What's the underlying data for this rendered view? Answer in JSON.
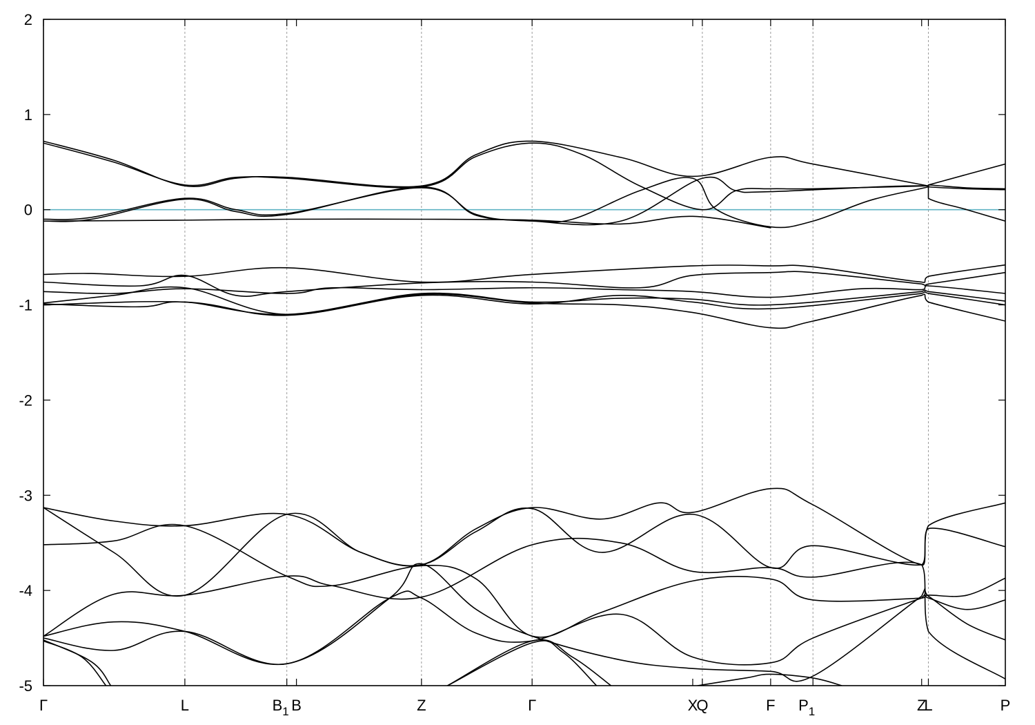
{
  "chart_data": {
    "type": "line",
    "title": "",
    "xlabel": "",
    "ylabel": "",
    "ylim": [
      -5,
      2
    ],
    "xlim": [
      0,
      1
    ],
    "yticks": [
      -5,
      -4,
      -3,
      -2,
      -1,
      0,
      1,
      2
    ],
    "grid": "vertical dashed lines at high-symmetry points",
    "reference_line": {
      "y": 0,
      "color": "#5fb3c4"
    },
    "kpoints": [
      {
        "label": "Γ",
        "sub": "",
        "x": 0.0,
        "line": false
      },
      {
        "label": "L",
        "sub": "",
        "x": 0.147,
        "line": true
      },
      {
        "label": "B",
        "sub": "1",
        "x": 0.253,
        "line": true
      },
      {
        "label": "B",
        "sub": "",
        "x": 0.263,
        "line": false
      },
      {
        "label": "Z",
        "sub": "",
        "x": 0.393,
        "line": true
      },
      {
        "label": "Γ",
        "sub": "",
        "x": 0.508,
        "line": true
      },
      {
        "label": "X",
        "sub": "",
        "x": 0.675,
        "line": false
      },
      {
        "label": "Q",
        "sub": "",
        "x": 0.685,
        "line": true
      },
      {
        "label": "F",
        "sub": "",
        "x": 0.756,
        "line": true
      },
      {
        "label": "P",
        "sub": "1",
        "x": 0.8,
        "line": true
      },
      {
        "label": "Z",
        "sub": "",
        "x": 0.913,
        "line": false
      },
      {
        "label": "L",
        "sub": "",
        "x": 0.92,
        "line": true
      },
      {
        "label": "P",
        "sub": "",
        "x": 1.0,
        "line": false
      }
    ],
    "series": [
      {
        "points": [
          [
            0,
            0.72
          ],
          [
            0.073,
            0.52
          ],
          [
            0.147,
            0.25
          ],
          [
            0.2,
            0.33
          ],
          [
            0.253,
            0.34
          ],
          [
            0.393,
            0.25
          ],
          [
            0.45,
            0.58
          ],
          [
            0.508,
            0.72
          ],
          [
            0.6,
            0.55
          ],
          [
            0.675,
            0.35
          ],
          [
            0.756,
            0.55
          ],
          [
            0.8,
            0.48
          ],
          [
            0.92,
            0.25
          ],
          [
            0.92,
            0.26
          ],
          [
            1.0,
            0.48
          ]
        ]
      },
      {
        "points": [
          [
            0,
            0.7
          ],
          [
            0.073,
            0.5
          ],
          [
            0.147,
            0.26
          ],
          [
            0.2,
            0.34
          ],
          [
            0.253,
            0.33
          ],
          [
            0.393,
            0.24
          ],
          [
            0.45,
            0.56
          ],
          [
            0.508,
            0.7
          ],
          [
            0.56,
            0.58
          ],
          [
            0.62,
            0.25
          ],
          [
            0.685,
            0.0
          ],
          [
            0.72,
            0.2
          ],
          [
            0.756,
            0.22
          ],
          [
            0.8,
            0.22
          ],
          [
            0.92,
            0.25
          ],
          [
            0.92,
            0.24
          ],
          [
            0.96,
            0.22
          ],
          [
            1.0,
            0.21
          ]
        ]
      },
      {
        "points": [
          [
            0,
            -0.1
          ],
          [
            0.05,
            -0.08
          ],
          [
            0.147,
            0.12
          ],
          [
            0.2,
            0.0
          ],
          [
            0.253,
            -0.04
          ],
          [
            0.393,
            0.23
          ],
          [
            0.45,
            -0.05
          ],
          [
            0.508,
            -0.12
          ],
          [
            0.6,
            -0.12
          ],
          [
            0.685,
            0.33
          ],
          [
            0.72,
            0.2
          ],
          [
            0.756,
            0.19
          ],
          [
            0.92,
            0.25
          ],
          [
            0.92,
            0.12
          ],
          [
            0.96,
            0.0
          ],
          [
            1.0,
            -0.12
          ]
        ]
      },
      {
        "points": [
          [
            0,
            -0.12
          ],
          [
            0.05,
            -0.1
          ],
          [
            0.147,
            0.11
          ],
          [
            0.2,
            -0.02
          ],
          [
            0.253,
            -0.05
          ],
          [
            0.393,
            0.24
          ],
          [
            0.45,
            -0.06
          ],
          [
            0.508,
            -0.11
          ],
          [
            0.55,
            -0.1
          ],
          [
            0.62,
            0.2
          ],
          [
            0.675,
            0.33
          ],
          [
            0.7,
            0.0
          ],
          [
            0.756,
            -0.18
          ],
          [
            0.8,
            -0.12
          ],
          [
            0.86,
            0.1
          ],
          [
            0.92,
            0.24
          ],
          [
            0.92,
            0.26
          ],
          [
            0.96,
            0.23
          ],
          [
            1.0,
            0.22
          ]
        ]
      },
      {
        "points": [
          [
            0,
            -0.12
          ],
          [
            0.147,
            -0.11
          ],
          [
            0.253,
            -0.1
          ],
          [
            0.393,
            -0.1
          ],
          [
            0.508,
            -0.11
          ],
          [
            0.6,
            -0.15
          ],
          [
            0.675,
            -0.07
          ],
          [
            0.756,
            -0.19
          ]
        ]
      },
      {
        "points": [
          [
            0,
            -0.68
          ],
          [
            0.05,
            -0.67
          ],
          [
            0.147,
            -0.7
          ],
          [
            0.253,
            -0.61
          ],
          [
            0.393,
            -0.76
          ],
          [
            0.508,
            -0.68
          ],
          [
            0.675,
            -0.59
          ],
          [
            0.756,
            -0.59
          ],
          [
            0.8,
            -0.6
          ],
          [
            0.913,
            -0.76
          ],
          [
            0.92,
            -0.7
          ],
          [
            1.0,
            -0.58
          ]
        ]
      },
      {
        "points": [
          [
            0,
            -0.76
          ],
          [
            0.1,
            -0.8
          ],
          [
            0.147,
            -0.69
          ],
          [
            0.2,
            -0.9
          ],
          [
            0.253,
            -0.86
          ],
          [
            0.393,
            -0.77
          ],
          [
            0.508,
            -0.76
          ],
          [
            0.62,
            -0.82
          ],
          [
            0.675,
            -0.69
          ],
          [
            0.756,
            -0.66
          ],
          [
            0.8,
            -0.66
          ],
          [
            0.913,
            -0.78
          ],
          [
            0.92,
            -0.78
          ],
          [
            1.0,
            -0.66
          ]
        ]
      },
      {
        "points": [
          [
            0,
            -0.86
          ],
          [
            0.073,
            -0.88
          ],
          [
            0.147,
            -0.83
          ],
          [
            0.253,
            -0.88
          ],
          [
            0.3,
            -0.82
          ],
          [
            0.393,
            -0.84
          ],
          [
            0.508,
            -0.82
          ],
          [
            0.6,
            -0.84
          ],
          [
            0.675,
            -0.86
          ],
          [
            0.756,
            -0.92
          ],
          [
            0.85,
            -0.83
          ],
          [
            0.913,
            -0.84
          ],
          [
            0.92,
            -0.8
          ],
          [
            1.0,
            -0.88
          ]
        ]
      },
      {
        "points": [
          [
            0,
            -0.98
          ],
          [
            0.073,
            -0.9
          ],
          [
            0.147,
            -0.82
          ],
          [
            0.253,
            -1.1
          ],
          [
            0.393,
            -0.88
          ],
          [
            0.508,
            -0.97
          ],
          [
            0.6,
            -0.93
          ],
          [
            0.675,
            -0.94
          ],
          [
            0.756,
            -1.0
          ],
          [
            0.913,
            -0.86
          ],
          [
            0.92,
            -0.86
          ],
          [
            1.0,
            -0.96
          ]
        ]
      },
      {
        "points": [
          [
            0,
            -1.0
          ],
          [
            0.147,
            -0.97
          ],
          [
            0.253,
            -1.11
          ],
          [
            0.393,
            -0.9
          ],
          [
            0.508,
            -0.99
          ],
          [
            0.6,
            -0.9
          ],
          [
            0.675,
            -0.97
          ],
          [
            0.756,
            -1.04
          ],
          [
            0.913,
            -0.88
          ],
          [
            0.92,
            -0.88
          ],
          [
            1.0,
            -1.0
          ]
        ]
      },
      {
        "points": [
          [
            0,
            -0.99
          ],
          [
            0.1,
            -1.02
          ],
          [
            0.147,
            -0.97
          ],
          [
            0.253,
            -1.1
          ],
          [
            0.393,
            -0.89
          ],
          [
            0.508,
            -0.98
          ],
          [
            0.6,
            -1.0
          ],
          [
            0.675,
            -1.08
          ],
          [
            0.756,
            -1.24
          ],
          [
            0.8,
            -1.17
          ],
          [
            0.913,
            -0.9
          ],
          [
            0.92,
            -0.97
          ],
          [
            1.0,
            -1.17
          ]
        ]
      },
      {
        "points": [
          [
            0,
            -3.13
          ],
          [
            0.073,
            -3.27
          ],
          [
            0.147,
            -3.32
          ],
          [
            0.253,
            -3.2
          ],
          [
            0.33,
            -3.6
          ],
          [
            0.393,
            -3.73
          ],
          [
            0.45,
            -3.35
          ],
          [
            0.508,
            -3.13
          ],
          [
            0.58,
            -3.25
          ],
          [
            0.64,
            -3.08
          ],
          [
            0.675,
            -3.18
          ],
          [
            0.756,
            -2.93
          ],
          [
            0.8,
            -3.1
          ],
          [
            0.913,
            -3.73
          ],
          [
            0.92,
            -3.32
          ],
          [
            1.0,
            -3.08
          ]
        ]
      },
      {
        "points": [
          [
            0,
            -3.13
          ],
          [
            0.073,
            -3.6
          ],
          [
            0.147,
            -4.05
          ],
          [
            0.253,
            -3.2
          ],
          [
            0.33,
            -3.6
          ],
          [
            0.393,
            -3.73
          ],
          [
            0.45,
            -3.38
          ],
          [
            0.508,
            -3.14
          ],
          [
            0.58,
            -3.6
          ],
          [
            0.675,
            -3.2
          ],
          [
            0.756,
            -3.76
          ],
          [
            0.8,
            -3.53
          ],
          [
            0.913,
            -3.73
          ],
          [
            0.92,
            -3.35
          ],
          [
            1.0,
            -3.54
          ]
        ]
      },
      {
        "points": [
          [
            0,
            -3.52
          ],
          [
            0.073,
            -3.48
          ],
          [
            0.147,
            -3.32
          ],
          [
            0.253,
            -3.85
          ],
          [
            0.3,
            -3.95
          ],
          [
            0.393,
            -3.74
          ],
          [
            0.45,
            -3.88
          ],
          [
            0.508,
            -4.48
          ],
          [
            0.58,
            -4.23
          ],
          [
            0.675,
            -3.9
          ],
          [
            0.756,
            -3.88
          ],
          [
            0.8,
            -4.1
          ],
          [
            0.913,
            -4.08
          ],
          [
            0.92,
            -4.05
          ],
          [
            0.96,
            -4.05
          ],
          [
            1.0,
            -3.87
          ]
        ]
      },
      {
        "points": [
          [
            0,
            -4.48
          ],
          [
            0.073,
            -4.04
          ],
          [
            0.147,
            -4.05
          ],
          [
            0.253,
            -3.85
          ],
          [
            0.3,
            -3.95
          ],
          [
            0.393,
            -4.07
          ],
          [
            0.508,
            -3.52
          ],
          [
            0.6,
            -3.5
          ],
          [
            0.675,
            -3.8
          ],
          [
            0.756,
            -3.76
          ],
          [
            0.8,
            -3.86
          ],
          [
            0.913,
            -3.73
          ],
          [
            0.92,
            -4.43
          ],
          [
            1.0,
            -4.93
          ]
        ]
      },
      {
        "points": [
          [
            0,
            -4.48
          ],
          [
            0.073,
            -4.33
          ],
          [
            0.147,
            -4.43
          ],
          [
            0.253,
            -4.77
          ],
          [
            0.36,
            -4.08
          ],
          [
            0.393,
            -4.08
          ],
          [
            0.45,
            -4.45
          ],
          [
            0.508,
            -4.53
          ],
          [
            0.6,
            -4.25
          ],
          [
            0.675,
            -4.7
          ],
          [
            0.756,
            -4.76
          ],
          [
            0.8,
            -4.5
          ],
          [
            0.913,
            -4.08
          ],
          [
            0.92,
            -4.08
          ],
          [
            0.96,
            -4.2
          ],
          [
            1.0,
            -4.1
          ]
        ]
      },
      {
        "points": [
          [
            0,
            -4.5
          ],
          [
            0.073,
            -4.63
          ],
          [
            0.147,
            -4.43
          ],
          [
            0.253,
            -4.77
          ],
          [
            0.36,
            -4.08
          ],
          [
            0.393,
            -3.72
          ],
          [
            0.45,
            -4.2
          ],
          [
            0.508,
            -4.48
          ],
          [
            0.6,
            -4.73
          ],
          [
            0.675,
            -4.82
          ],
          [
            0.756,
            -4.85
          ],
          [
            0.8,
            -4.9
          ],
          [
            0.913,
            -4.06
          ],
          [
            0.92,
            -4.06
          ],
          [
            0.96,
            -4.35
          ],
          [
            1.0,
            -4.52
          ]
        ]
      },
      {
        "points": [
          [
            0,
            -4.52
          ],
          [
            0.05,
            -4.75
          ],
          [
            0.07,
            -5.0
          ]
        ]
      },
      {
        "points": [
          [
            0,
            -4.53
          ],
          [
            0.04,
            -4.7
          ],
          [
            0.065,
            -5.0
          ]
        ]
      },
      {
        "points": [
          [
            0.42,
            -5.0
          ],
          [
            0.508,
            -4.55
          ],
          [
            0.54,
            -4.65
          ],
          [
            0.575,
            -5.0
          ]
        ]
      },
      {
        "points": [
          [
            0.42,
            -5.0
          ],
          [
            0.508,
            -4.53
          ],
          [
            0.55,
            -4.7
          ],
          [
            0.59,
            -5.0
          ]
        ]
      },
      {
        "points": [
          [
            0.68,
            -5.0
          ],
          [
            0.73,
            -4.92
          ],
          [
            0.756,
            -4.88
          ],
          [
            0.8,
            -4.92
          ],
          [
            0.83,
            -5.0
          ]
        ]
      }
    ]
  }
}
